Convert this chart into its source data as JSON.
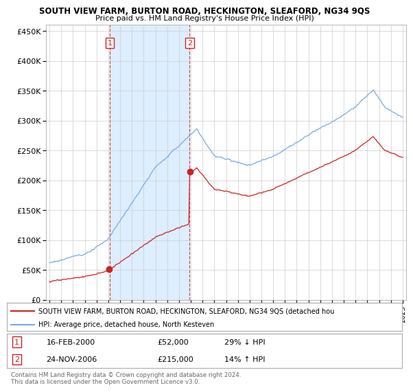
{
  "title": "SOUTH VIEW FARM, BURTON ROAD, HECKINGTON, SLEAFORD, NG34 9QS",
  "subtitle": "Price paid vs. HM Land Registry's House Price Index (HPI)",
  "ylim": [
    0,
    460000
  ],
  "yticks": [
    0,
    50000,
    100000,
    150000,
    200000,
    250000,
    300000,
    350000,
    400000,
    450000
  ],
  "ytick_labels": [
    "£0",
    "£50K",
    "£100K",
    "£150K",
    "£200K",
    "£250K",
    "£300K",
    "£350K",
    "£400K",
    "£450K"
  ],
  "sale1_year": 2000.12,
  "sale1_price": 52000,
  "sale2_year": 2006.9,
  "sale2_price": 215000,
  "hpi_color": "#7aaadd",
  "price_color": "#cc2222",
  "shade_color": "#ddeeff",
  "legend_text1": "SOUTH VIEW FARM, BURTON ROAD, HECKINGTON, SLEAFORD, NG34 9QS (detached hou",
  "legend_text2": "HPI: Average price, detached house, North Kesteven",
  "footer": "Contains HM Land Registry data © Crown copyright and database right 2024.\nThis data is licensed under the Open Government Licence v3.0.",
  "background_color": "#ffffff",
  "grid_color": "#cccccc",
  "xstart": 1995,
  "xend": 2025
}
